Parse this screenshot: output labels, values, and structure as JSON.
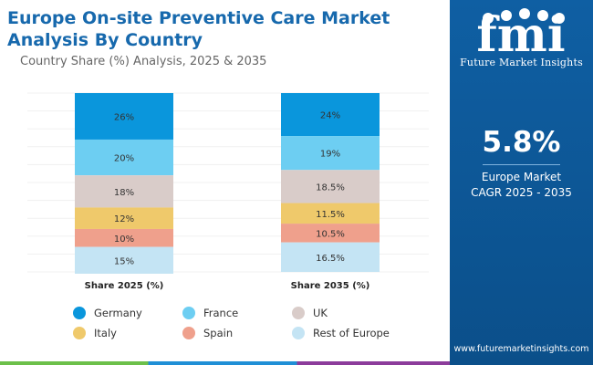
{
  "header": {
    "title": "Europe On-site Preventive Care Market Analysis By Country",
    "subtitle": "Country Share (%) Analysis, 2025 & 2035"
  },
  "colors": {
    "Germany": "#0a96dc",
    "France": "#6dcef2",
    "UK": "#d9ccc9",
    "Italy": "#efc96b",
    "Spain": "#efa08c",
    "Rest of Europe": "#c4e4f4",
    "panel": "#0d5a9a",
    "title": "#1769ad"
  },
  "chart_data": {
    "type": "bar",
    "stacked": true,
    "categories": [
      "Share 2025 (%)",
      "Share 2035 (%)"
    ],
    "series": [
      {
        "name": "Germany",
        "values": [
          26,
          24
        ],
        "labels": [
          "26%",
          "24%"
        ]
      },
      {
        "name": "France",
        "values": [
          20,
          19
        ],
        "labels": [
          "20%",
          "19%"
        ]
      },
      {
        "name": "UK",
        "values": [
          18,
          18.5
        ],
        "labels": [
          "18%",
          "18.5%"
        ]
      },
      {
        "name": "Italy",
        "values": [
          12,
          11.5
        ],
        "labels": [
          "12%",
          "11.5%"
        ]
      },
      {
        "name": "Spain",
        "values": [
          10,
          10.5
        ],
        "labels": [
          "10%",
          "10.5%"
        ]
      },
      {
        "name": "Rest of Europe",
        "values": [
          15,
          16.5
        ],
        "labels": [
          "15%",
          "16.5%"
        ]
      }
    ],
    "ylim": [
      0,
      100
    ],
    "legend": [
      "Germany",
      "France",
      "UK",
      "Italy",
      "Spain",
      "Rest of Europe"
    ]
  },
  "panel": {
    "logo_text": "fmi",
    "brand": "Future Market Insights",
    "cagr": "5.8%",
    "cagr_label_1": "Europe Market",
    "cagr_label_2": "CAGR 2025 - 2035",
    "website": "www.futuremarketinsights.com"
  }
}
